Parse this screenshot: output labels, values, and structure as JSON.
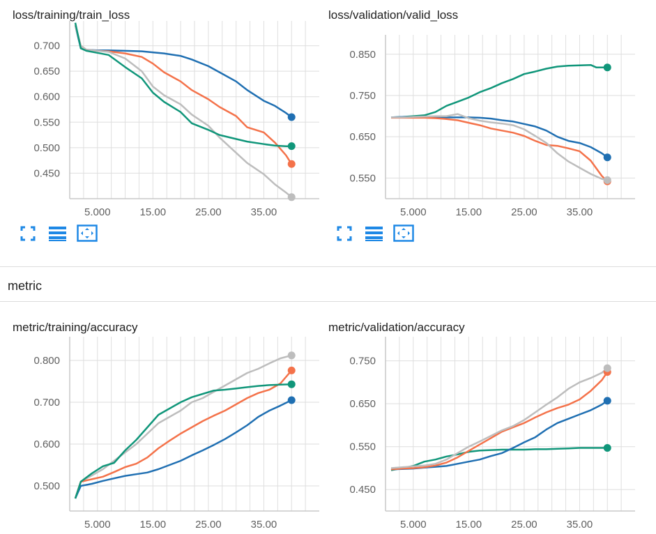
{
  "section": {
    "title": "metric"
  },
  "colors": {
    "blue": "#1f6fb2",
    "orange": "#f4724a",
    "teal": "#10967a",
    "gray": "#bdbdbd"
  },
  "toolbar_icons": [
    "fullscreen-icon",
    "data-selection-icon",
    "fit-domain-icon"
  ],
  "charts": [
    {
      "id": "train_loss",
      "title": "loss/training/train_loss",
      "chart_data": {
        "type": "line",
        "title": "loss/training/train_loss",
        "x_ticks": [
          "5.000",
          "15.00",
          "25.00",
          "35.00"
        ],
        "y_ticks": [
          "0.700",
          "0.650",
          "0.600",
          "0.550",
          "0.500",
          "0.450"
        ],
        "xlim": [
          0,
          45
        ],
        "ylim": [
          0.4,
          0.735
        ],
        "grid": true,
        "series": [
          {
            "color": "#1f6fb2",
            "x": [
              1,
              2,
              3,
              5,
              7,
              10,
              13,
              15,
              17,
              20,
              22,
              25,
              27,
              30,
              32,
              35,
              37,
              39,
              40
            ],
            "y": [
              0.74,
              0.695,
              0.692,
              0.691,
              0.691,
              0.69,
              0.689,
              0.687,
              0.685,
              0.68,
              0.673,
              0.66,
              0.648,
              0.63,
              0.613,
              0.592,
              0.582,
              0.568,
              0.56
            ]
          },
          {
            "color": "#f4724a",
            "x": [
              1,
              2,
              3,
              5,
              7,
              10,
              13,
              15,
              17,
              20,
              22,
              25,
              27,
              30,
              32,
              35,
              37,
              39,
              40
            ],
            "y": [
              0.74,
              0.7,
              0.692,
              0.69,
              0.689,
              0.685,
              0.678,
              0.665,
              0.648,
              0.63,
              0.613,
              0.595,
              0.58,
              0.562,
              0.54,
              0.53,
              0.51,
              0.485,
              0.468
            ]
          },
          {
            "color": "#bdbdbd",
            "x": [
              1,
              2,
              3,
              5,
              7,
              10,
              13,
              15,
              17,
              20,
              22,
              25,
              27,
              30,
              32,
              35,
              37,
              39,
              40
            ],
            "y": [
              0.74,
              0.7,
              0.692,
              0.69,
              0.688,
              0.675,
              0.65,
              0.62,
              0.603,
              0.585,
              0.565,
              0.543,
              0.52,
              0.49,
              0.47,
              0.448,
              0.428,
              0.412,
              0.403
            ]
          },
          {
            "color": "#10967a",
            "x": [
              1,
              2,
              3,
              5,
              7,
              10,
              13,
              15,
              17,
              20,
              22,
              25,
              27,
              30,
              32,
              35,
              37,
              39,
              40
            ],
            "y": [
              0.745,
              0.695,
              0.69,
              0.686,
              0.682,
              0.658,
              0.636,
              0.608,
              0.59,
              0.57,
              0.548,
              0.535,
              0.525,
              0.517,
              0.512,
              0.507,
              0.504,
              0.503,
              0.503
            ]
          }
        ]
      }
    },
    {
      "id": "valid_loss",
      "title": "loss/validation/valid_loss",
      "chart_data": {
        "type": "line",
        "title": "loss/validation/valid_loss",
        "x_ticks": [
          "5.000",
          "15.00",
          "25.00",
          "35.00"
        ],
        "y_ticks": [
          "0.850",
          "0.750",
          "0.650",
          "0.550"
        ],
        "xlim": [
          0,
          45
        ],
        "ylim": [
          0.5,
          0.88
        ],
        "grid": true,
        "series": [
          {
            "color": "#10967a",
            "x": [
              1,
              3,
              5,
              7,
              9,
              11,
              13,
              15,
              17,
              19,
              21,
              23,
              25,
              27,
              29,
              31,
              33,
              35,
              37,
              38,
              40
            ],
            "y": [
              0.697,
              0.698,
              0.7,
              0.702,
              0.71,
              0.725,
              0.735,
              0.745,
              0.758,
              0.768,
              0.78,
              0.79,
              0.802,
              0.808,
              0.815,
              0.82,
              0.822,
              0.823,
              0.824,
              0.818,
              0.818
            ]
          },
          {
            "color": "#1f6fb2",
            "x": [
              1,
              3,
              5,
              7,
              9,
              11,
              13,
              15,
              17,
              19,
              21,
              23,
              25,
              27,
              29,
              31,
              33,
              35,
              37,
              39,
              40
            ],
            "y": [
              0.697,
              0.698,
              0.698,
              0.698,
              0.697,
              0.697,
              0.697,
              0.697,
              0.696,
              0.694,
              0.69,
              0.687,
              0.681,
              0.675,
              0.665,
              0.65,
              0.64,
              0.635,
              0.625,
              0.61,
              0.6
            ]
          },
          {
            "color": "#f4724a",
            "x": [
              1,
              3,
              5,
              7,
              9,
              11,
              13,
              15,
              17,
              19,
              21,
              23,
              25,
              27,
              29,
              31,
              33,
              35,
              37,
              39,
              40
            ],
            "y": [
              0.696,
              0.696,
              0.696,
              0.696,
              0.695,
              0.693,
              0.69,
              0.684,
              0.678,
              0.67,
              0.665,
              0.66,
              0.652,
              0.64,
              0.63,
              0.628,
              0.622,
              0.615,
              0.592,
              0.555,
              0.542
            ]
          },
          {
            "color": "#bdbdbd",
            "x": [
              1,
              3,
              5,
              7,
              9,
              11,
              13,
              15,
              17,
              19,
              21,
              23,
              25,
              27,
              29,
              31,
              33,
              35,
              37,
              39,
              40
            ],
            "y": [
              0.697,
              0.697,
              0.698,
              0.699,
              0.7,
              0.7,
              0.705,
              0.695,
              0.689,
              0.685,
              0.682,
              0.678,
              0.668,
              0.652,
              0.635,
              0.61,
              0.59,
              0.575,
              0.56,
              0.548,
              0.545
            ]
          }
        ]
      }
    },
    {
      "id": "train_accuracy",
      "title": "metric/training/accuracy",
      "chart_data": {
        "type": "line",
        "title": "metric/training/accuracy",
        "x_ticks": [
          "5.000",
          "15.00",
          "25.00",
          "35.00"
        ],
        "y_ticks": [
          "0.800",
          "0.700",
          "0.600",
          "0.500"
        ],
        "xlim": [
          0,
          45
        ],
        "ylim": [
          0.44,
          0.84
        ],
        "grid": true,
        "series": [
          {
            "color": "#bdbdbd",
            "x": [
              1,
              2,
              4,
              6,
              8,
              10,
              12,
              14,
              16,
              18,
              20,
              22,
              24,
              26,
              28,
              30,
              32,
              34,
              36,
              38,
              40
            ],
            "y": [
              0.47,
              0.51,
              0.525,
              0.54,
              0.56,
              0.58,
              0.6,
              0.625,
              0.65,
              0.665,
              0.68,
              0.7,
              0.71,
              0.725,
              0.74,
              0.755,
              0.77,
              0.78,
              0.793,
              0.805,
              0.812
            ]
          },
          {
            "color": "#f4724a",
            "x": [
              1,
              2,
              4,
              6,
              8,
              10,
              12,
              14,
              16,
              18,
              20,
              22,
              24,
              26,
              28,
              30,
              32,
              34,
              36,
              38,
              40
            ],
            "y": [
              0.47,
              0.51,
              0.516,
              0.522,
              0.533,
              0.545,
              0.553,
              0.568,
              0.59,
              0.608,
              0.625,
              0.64,
              0.655,
              0.668,
              0.68,
              0.695,
              0.71,
              0.722,
              0.73,
              0.745,
              0.776
            ]
          },
          {
            "color": "#1f6fb2",
            "x": [
              1,
              2,
              4,
              6,
              8,
              10,
              12,
              14,
              16,
              18,
              20,
              22,
              24,
              26,
              28,
              30,
              32,
              34,
              36,
              38,
              40
            ],
            "y": [
              0.47,
              0.5,
              0.505,
              0.512,
              0.518,
              0.524,
              0.528,
              0.532,
              0.54,
              0.55,
              0.56,
              0.573,
              0.585,
              0.598,
              0.612,
              0.628,
              0.645,
              0.665,
              0.68,
              0.692,
              0.705
            ]
          },
          {
            "color": "#10967a",
            "x": [
              1,
              2,
              4,
              6,
              8,
              10,
              12,
              14,
              16,
              18,
              20,
              22,
              24,
              26,
              28,
              30,
              32,
              34,
              36,
              38,
              40
            ],
            "y": [
              0.47,
              0.51,
              0.53,
              0.547,
              0.555,
              0.585,
              0.61,
              0.64,
              0.67,
              0.685,
              0.7,
              0.712,
              0.72,
              0.728,
              0.73,
              0.733,
              0.736,
              0.739,
              0.741,
              0.742,
              0.743
            ]
          }
        ]
      }
    },
    {
      "id": "valid_accuracy",
      "title": "metric/validation/accuracy",
      "chart_data": {
        "type": "line",
        "title": "metric/validation/accuracy",
        "x_ticks": [
          "5.000",
          "15.00",
          "25.00",
          "35.00"
        ],
        "y_ticks": [
          "0.750",
          "0.650",
          "0.550",
          "0.450"
        ],
        "xlim": [
          0,
          45
        ],
        "ylim": [
          0.4,
          0.79
        ],
        "grid": true,
        "series": [
          {
            "color": "#10967a",
            "x": [
              1,
              3,
              5,
              7,
              9,
              11,
              13,
              15,
              17,
              19,
              21,
              23,
              25,
              27,
              29,
              31,
              33,
              35,
              37,
              39,
              40
            ],
            "y": [
              0.495,
              0.5,
              0.505,
              0.515,
              0.52,
              0.527,
              0.532,
              0.538,
              0.541,
              0.542,
              0.543,
              0.543,
              0.543,
              0.544,
              0.544,
              0.545,
              0.546,
              0.547,
              0.547,
              0.547,
              0.547
            ]
          },
          {
            "color": "#1f6fb2",
            "x": [
              1,
              3,
              5,
              7,
              9,
              11,
              13,
              15,
              17,
              19,
              21,
              23,
              25,
              27,
              29,
              31,
              33,
              35,
              37,
              39,
              40
            ],
            "y": [
              0.497,
              0.498,
              0.499,
              0.501,
              0.503,
              0.505,
              0.51,
              0.515,
              0.52,
              0.528,
              0.535,
              0.547,
              0.56,
              0.572,
              0.59,
              0.605,
              0.615,
              0.625,
              0.635,
              0.648,
              0.657
            ]
          },
          {
            "color": "#f4724a",
            "x": [
              1,
              3,
              5,
              7,
              9,
              11,
              13,
              15,
              17,
              19,
              21,
              23,
              25,
              27,
              29,
              31,
              33,
              35,
              37,
              39,
              40
            ],
            "y": [
              0.497,
              0.499,
              0.5,
              0.502,
              0.506,
              0.513,
              0.525,
              0.54,
              0.555,
              0.57,
              0.585,
              0.595,
              0.605,
              0.618,
              0.63,
              0.64,
              0.648,
              0.66,
              0.68,
              0.705,
              0.724
            ]
          },
          {
            "color": "#bdbdbd",
            "x": [
              1,
              3,
              5,
              7,
              9,
              11,
              13,
              15,
              17,
              19,
              21,
              23,
              25,
              27,
              29,
              31,
              33,
              35,
              37,
              39,
              40
            ],
            "y": [
              0.5,
              0.502,
              0.504,
              0.506,
              0.51,
              0.52,
              0.535,
              0.55,
              0.562,
              0.575,
              0.588,
              0.598,
              0.612,
              0.63,
              0.648,
              0.665,
              0.685,
              0.7,
              0.71,
              0.722,
              0.733
            ]
          }
        ]
      }
    }
  ]
}
